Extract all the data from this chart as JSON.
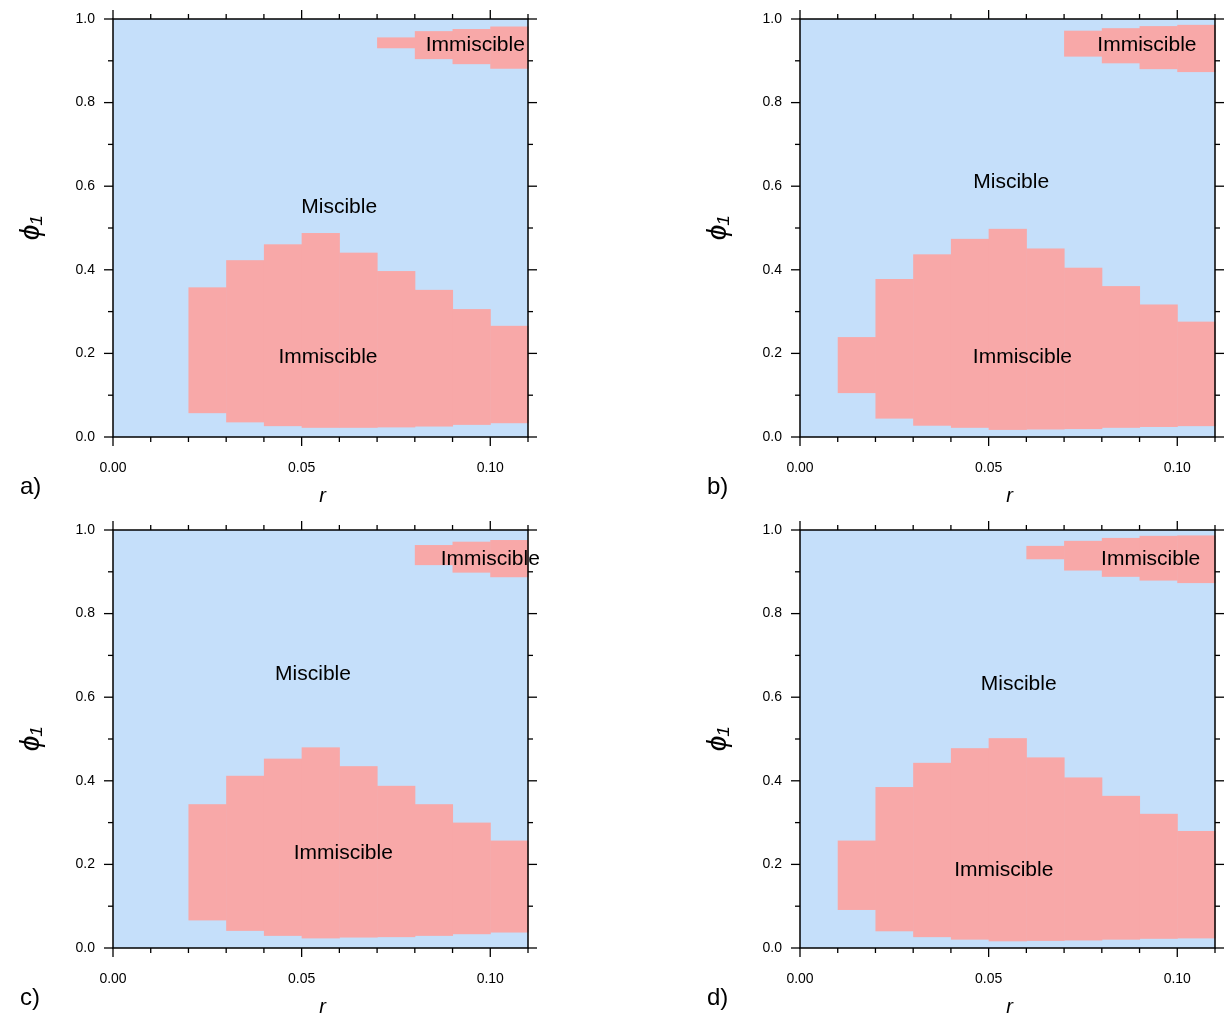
{
  "chart_data": [
    {
      "type": "bar",
      "xlabel": "r",
      "ylabel": "ϕ₁",
      "xlim": [
        0,
        0.11
      ],
      "ylim": [
        0,
        1
      ],
      "xticks": [
        {
          "value": 0,
          "label": "0.00"
        },
        {
          "value": 0.01,
          "label": null
        },
        {
          "value": 0.02,
          "label": null
        },
        {
          "value": 0.03,
          "label": null
        },
        {
          "value": 0.04,
          "label": null
        },
        {
          "value": 0.05,
          "label": "0.05"
        },
        {
          "value": 0.06,
          "label": null
        },
        {
          "value": 0.07,
          "label": null
        },
        {
          "value": 0.08,
          "label": null
        },
        {
          "value": 0.09,
          "label": null
        },
        {
          "value": 0.1,
          "label": "0.10"
        },
        {
          "value": 0.11,
          "label": null
        }
      ],
      "yticks": [
        {
          "value": 0,
          "label": "0.0"
        },
        {
          "value": 0.1,
          "label": null
        },
        {
          "value": 0.2,
          "label": "0.2"
        },
        {
          "value": 0.3,
          "label": null
        },
        {
          "value": 0.4,
          "label": "0.4"
        },
        {
          "value": 0.5,
          "label": null
        },
        {
          "value": 0.6,
          "label": "0.6"
        },
        {
          "value": 0.7,
          "label": null
        },
        {
          "value": 0.8,
          "label": "0.8"
        },
        {
          "value": 0.9,
          "label": null
        },
        {
          "value": 1,
          "label": "1.0"
        }
      ],
      "bands": [
        {
          "axis": "y",
          "from": 0,
          "to": 1,
          "color": "#c5dffa",
          "label": "Miscible"
        }
      ],
      "series": [
        {
          "name": "Immiscible",
          "color": "#f8a8a8",
          "x": [
            0.025,
            0.035,
            0.045,
            0.055,
            0.065,
            0.075,
            0.085,
            0.095,
            0.105
          ],
          "base": [
            0.057,
            0.035,
            0.026,
            0.022,
            0.022,
            0.023,
            0.025,
            0.029,
            0.033
          ],
          "values": [
            0.301,
            0.388,
            0.435,
            0.466,
            0.419,
            0.374,
            0.327,
            0.277,
            0.233
          ]
        },
        {
          "name": "Immiscible",
          "color": "#f8a8a8",
          "x": [
            0.075,
            0.085,
            0.095,
            0.105
          ],
          "base": [
            0.93,
            0.904,
            0.892,
            0.881
          ],
          "values": [
            0.026,
            0.067,
            0.084,
            0.101
          ]
        }
      ],
      "annotations": [
        "a)"
      ]
    },
    {
      "type": "bar",
      "xlabel": "r",
      "ylabel": "ϕ₁",
      "xlim": [
        0,
        0.11
      ],
      "ylim": [
        0,
        1
      ],
      "xticks": [
        {
          "value": 0,
          "label": "0.00"
        },
        {
          "value": 0.01,
          "label": null
        },
        {
          "value": 0.02,
          "label": null
        },
        {
          "value": 0.03,
          "label": null
        },
        {
          "value": 0.04,
          "label": null
        },
        {
          "value": 0.05,
          "label": "0.05"
        },
        {
          "value": 0.06,
          "label": null
        },
        {
          "value": 0.07,
          "label": null
        },
        {
          "value": 0.08,
          "label": null
        },
        {
          "value": 0.09,
          "label": null
        },
        {
          "value": 0.1,
          "label": "0.10"
        },
        {
          "value": 0.11,
          "label": null
        }
      ],
      "yticks": [
        {
          "value": 0,
          "label": "0.0"
        },
        {
          "value": 0.1,
          "label": null
        },
        {
          "value": 0.2,
          "label": "0.2"
        },
        {
          "value": 0.3,
          "label": null
        },
        {
          "value": 0.4,
          "label": "0.4"
        },
        {
          "value": 0.5,
          "label": null
        },
        {
          "value": 0.6,
          "label": "0.6"
        },
        {
          "value": 0.7,
          "label": null
        },
        {
          "value": 0.8,
          "label": "0.8"
        },
        {
          "value": 0.9,
          "label": null
        },
        {
          "value": 1,
          "label": "1.0"
        }
      ],
      "bands": [
        {
          "axis": "y",
          "from": 0,
          "to": 1,
          "color": "#c5dffa",
          "label": "Miscible"
        }
      ],
      "series": [
        {
          "name": "Immiscible",
          "color": "#f8a8a8",
          "x": [
            0.015,
            0.025,
            0.035,
            0.045,
            0.055,
            0.065,
            0.075,
            0.085,
            0.095,
            0.105
          ],
          "base": [
            0.105,
            0.044,
            0.027,
            0.022,
            0.017,
            0.018,
            0.019,
            0.022,
            0.024,
            0.026
          ],
          "values": [
            0.134,
            0.334,
            0.41,
            0.452,
            0.481,
            0.433,
            0.386,
            0.339,
            0.293,
            0.25
          ]
        },
        {
          "name": "Immiscible",
          "color": "#f8a8a8",
          "x": [
            0.075,
            0.085,
            0.095,
            0.105
          ],
          "base": [
            0.91,
            0.894,
            0.88,
            0.873
          ],
          "values": [
            0.062,
            0.084,
            0.103,
            0.113
          ]
        }
      ],
      "annotations": [
        "b)"
      ]
    },
    {
      "type": "bar",
      "xlabel": "r",
      "ylabel": "ϕ₁",
      "xlim": [
        0,
        0.11
      ],
      "ylim": [
        0,
        1
      ],
      "xticks": [
        {
          "value": 0,
          "label": "0.00"
        },
        {
          "value": 0.01,
          "label": null
        },
        {
          "value": 0.02,
          "label": null
        },
        {
          "value": 0.03,
          "label": null
        },
        {
          "value": 0.04,
          "label": null
        },
        {
          "value": 0.05,
          "label": "0.05"
        },
        {
          "value": 0.06,
          "label": null
        },
        {
          "value": 0.07,
          "label": null
        },
        {
          "value": 0.08,
          "label": null
        },
        {
          "value": 0.09,
          "label": null
        },
        {
          "value": 0.1,
          "label": "0.10"
        },
        {
          "value": 0.11,
          "label": null
        }
      ],
      "yticks": [
        {
          "value": 0,
          "label": "0.0"
        },
        {
          "value": 0.1,
          "label": null
        },
        {
          "value": 0.2,
          "label": "0.2"
        },
        {
          "value": 0.3,
          "label": null
        },
        {
          "value": 0.4,
          "label": "0.4"
        },
        {
          "value": 0.5,
          "label": null
        },
        {
          "value": 0.6,
          "label": "0.6"
        },
        {
          "value": 0.7,
          "label": null
        },
        {
          "value": 0.8,
          "label": "0.8"
        },
        {
          "value": 0.9,
          "label": null
        },
        {
          "value": 1,
          "label": "1.0"
        }
      ],
      "bands": [
        {
          "axis": "y",
          "from": 0,
          "to": 1,
          "color": "#c5dffa",
          "label": "Miscible"
        }
      ],
      "series": [
        {
          "name": "Immiscible",
          "color": "#f8a8a8",
          "x": [
            0.025,
            0.035,
            0.045,
            0.055,
            0.065,
            0.075,
            0.085,
            0.095,
            0.105
          ],
          "base": [
            0.066,
            0.041,
            0.029,
            0.023,
            0.025,
            0.026,
            0.029,
            0.033,
            0.037
          ],
          "values": [
            0.278,
            0.371,
            0.424,
            0.457,
            0.41,
            0.362,
            0.315,
            0.267,
            0.22
          ]
        },
        {
          "name": "Immiscible",
          "color": "#f8a8a8",
          "x": [
            0.085,
            0.095,
            0.105
          ],
          "base": [
            0.916,
            0.898,
            0.887
          ],
          "values": [
            0.048,
            0.074,
            0.089
          ]
        }
      ],
      "annotations": [
        "c)"
      ]
    },
    {
      "type": "bar",
      "xlabel": "r",
      "ylabel": "ϕ₁",
      "xlim": [
        0,
        0.11
      ],
      "ylim": [
        0,
        1
      ],
      "xticks": [
        {
          "value": 0,
          "label": "0.00"
        },
        {
          "value": 0.01,
          "label": null
        },
        {
          "value": 0.02,
          "label": null
        },
        {
          "value": 0.03,
          "label": null
        },
        {
          "value": 0.04,
          "label": null
        },
        {
          "value": 0.05,
          "label": "0.05"
        },
        {
          "value": 0.06,
          "label": null
        },
        {
          "value": 0.07,
          "label": null
        },
        {
          "value": 0.08,
          "label": null
        },
        {
          "value": 0.09,
          "label": null
        },
        {
          "value": 0.1,
          "label": "0.10"
        },
        {
          "value": 0.11,
          "label": null
        }
      ],
      "yticks": [
        {
          "value": 0,
          "label": "0.0"
        },
        {
          "value": 0.1,
          "label": null
        },
        {
          "value": 0.2,
          "label": "0.2"
        },
        {
          "value": 0.3,
          "label": null
        },
        {
          "value": 0.4,
          "label": "0.4"
        },
        {
          "value": 0.5,
          "label": null
        },
        {
          "value": 0.6,
          "label": "0.6"
        },
        {
          "value": 0.7,
          "label": null
        },
        {
          "value": 0.8,
          "label": "0.8"
        },
        {
          "value": 0.9,
          "label": null
        },
        {
          "value": 1,
          "label": "1.0"
        }
      ],
      "bands": [
        {
          "axis": "y",
          "from": 0,
          "to": 1,
          "color": "#c5dffa",
          "label": "Miscible"
        }
      ],
      "series": [
        {
          "name": "Immiscible",
          "color": "#f8a8a8",
          "x": [
            0.015,
            0.025,
            0.035,
            0.045,
            0.055,
            0.065,
            0.075,
            0.085,
            0.095,
            0.105
          ],
          "base": [
            0.091,
            0.04,
            0.026,
            0.02,
            0.016,
            0.017,
            0.018,
            0.02,
            0.022,
            0.023
          ],
          "values": [
            0.166,
            0.345,
            0.417,
            0.458,
            0.486,
            0.439,
            0.39,
            0.344,
            0.299,
            0.257
          ]
        },
        {
          "name": "Immiscible",
          "color": "#f8a8a8",
          "x": [
            0.065,
            0.075,
            0.085,
            0.095,
            0.105
          ],
          "base": [
            0.93,
            0.903,
            0.888,
            0.879,
            0.873
          ],
          "values": [
            0.032,
            0.071,
            0.093,
            0.107,
            0.114
          ]
        }
      ],
      "annotations": [
        "d)"
      ]
    }
  ]
}
